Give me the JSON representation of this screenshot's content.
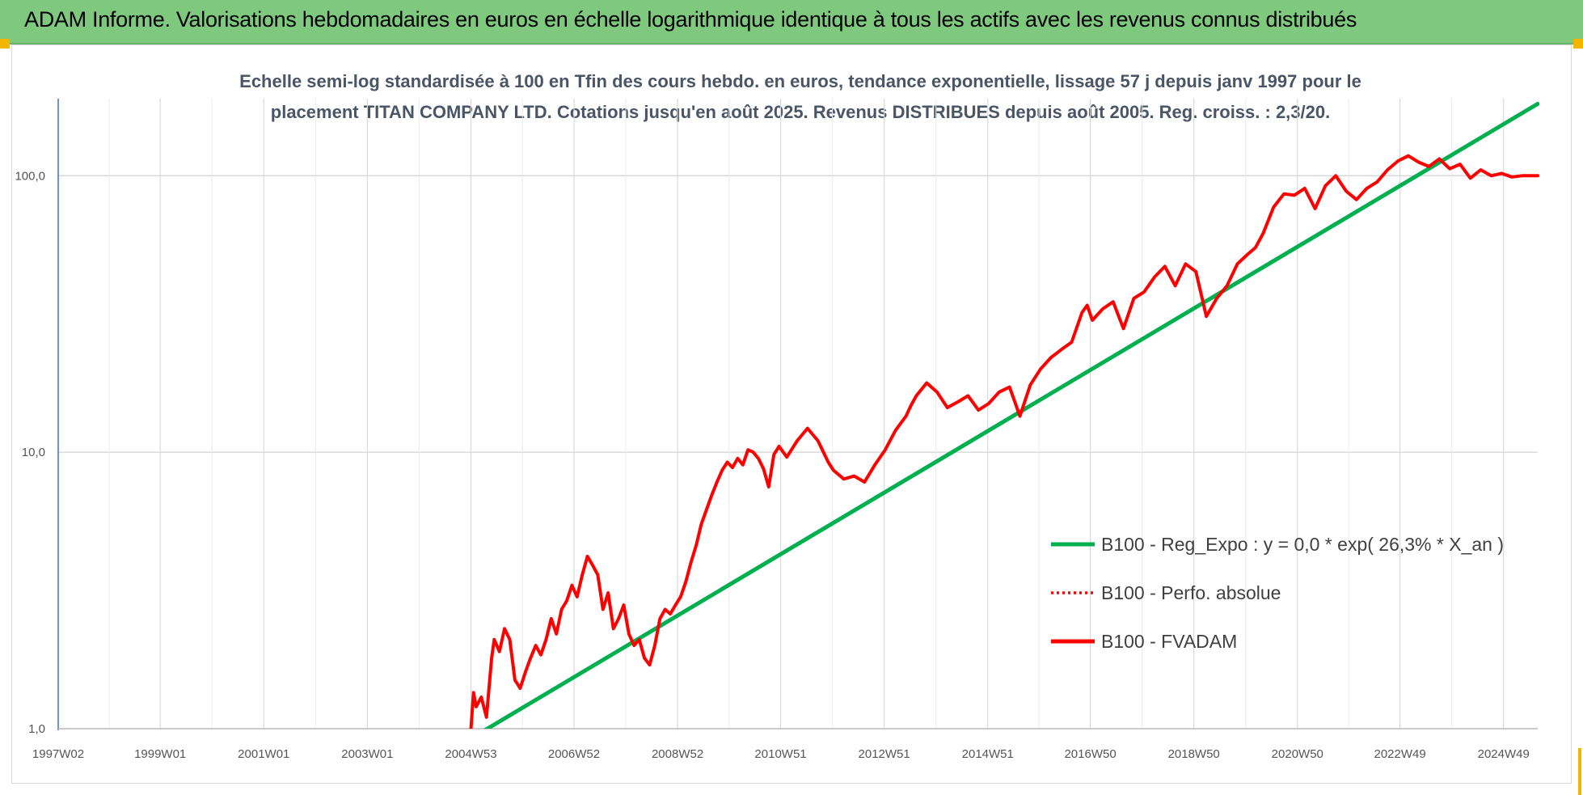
{
  "banner": {
    "title": "ADAM Informe. Valorisations hebdomadaires en euros en échelle logarithmique identique à tous les actifs avec les revenus connus distribués"
  },
  "colors": {
    "banner_bg": "#7fc97f",
    "accent": "#f2b600",
    "trend": "#00b050",
    "fvadam": "#ff0000",
    "grid": "#d9d9d9",
    "y_axis": "#4472c4"
  },
  "chart_data": {
    "type": "line",
    "title_lines": [
      "Echelle semi-log standardisée à 100 en Tfin des cours hebdo. en euros, tendance exponentielle, lissage 57 j depuis janv 1997 pour le",
      "placement TITAN COMPANY LTD. Cotations jusqu'en août 2025.  Revenus DISTRIBUES depuis août 2005. Reg. croiss. : 2,3/20."
    ],
    "y_scale": "log",
    "ylim": [
      1,
      190
    ],
    "xlim": [
      1997.03,
      2025.6
    ],
    "y_ticks": [
      {
        "value": 1,
        "label": "1,0"
      },
      {
        "value": 10,
        "label": "10,0"
      },
      {
        "value": 100,
        "label": "100,0"
      }
    ],
    "x_ticks": [
      {
        "value": 1997.03,
        "label": "1997W02"
      },
      {
        "value": 1999.0,
        "label": "1999W01"
      },
      {
        "value": 2001.0,
        "label": "2001W01"
      },
      {
        "value": 2003.0,
        "label": "2003W01"
      },
      {
        "value": 2005.0,
        "label": "2004W53"
      },
      {
        "value": 2006.99,
        "label": "2006W52"
      },
      {
        "value": 2008.99,
        "label": "2008W52"
      },
      {
        "value": 2010.98,
        "label": "2010W51"
      },
      {
        "value": 2012.98,
        "label": "2012W51"
      },
      {
        "value": 2014.98,
        "label": "2014W51"
      },
      {
        "value": 2016.96,
        "label": "2016W50"
      },
      {
        "value": 2018.96,
        "label": "2018W50"
      },
      {
        "value": 2020.96,
        "label": "2020W50"
      },
      {
        "value": 2022.94,
        "label": "2022W49"
      },
      {
        "value": 2024.94,
        "label": "2024W49"
      }
    ],
    "grid": true,
    "legend_position": "right",
    "series": [
      {
        "name": "B100 - Reg_Expo : y = 0,0 * exp( 26,3% *  X_an )",
        "style": "solid",
        "color": "#00b050",
        "x": [
          2005.2,
          2025.6
        ],
        "y": [
          0.97,
          182
        ]
      },
      {
        "name": "B100 - Perfo. absolue",
        "style": "dotted",
        "color": "#ff0000",
        "x": [],
        "y": []
      },
      {
        "name": "B100 - FVADAM",
        "style": "solid",
        "color": "#ff0000",
        "x": [
          2005.0,
          2005.05,
          2005.1,
          2005.2,
          2005.3,
          2005.4,
          2005.45,
          2005.55,
          2005.65,
          2005.75,
          2005.85,
          2005.95,
          2006.05,
          2006.15,
          2006.25,
          2006.35,
          2006.45,
          2006.55,
          2006.65,
          2006.75,
          2006.85,
          2006.95,
          2007.05,
          2007.15,
          2007.25,
          2007.35,
          2007.45,
          2007.55,
          2007.65,
          2007.75,
          2007.85,
          2007.95,
          2008.05,
          2008.15,
          2008.25,
          2008.35,
          2008.45,
          2008.55,
          2008.65,
          2008.75,
          2008.85,
          2008.95,
          2009.05,
          2009.15,
          2009.25,
          2009.35,
          2009.45,
          2009.55,
          2009.65,
          2009.75,
          2009.85,
          2009.95,
          2010.05,
          2010.15,
          2010.25,
          2010.35,
          2010.45,
          2010.55,
          2010.65,
          2010.75,
          2010.85,
          2010.95,
          2011.1,
          2011.3,
          2011.5,
          2011.7,
          2011.9,
          2012.0,
          2012.2,
          2012.4,
          2012.6,
          2012.8,
          2013.0,
          2013.2,
          2013.4,
          2013.5,
          2013.6,
          2013.8,
          2014.0,
          2014.2,
          2014.4,
          2014.6,
          2014.8,
          2015.0,
          2015.2,
          2015.4,
          2015.6,
          2015.8,
          2016.0,
          2016.2,
          2016.4,
          2016.6,
          2016.8,
          2016.9,
          2017.0,
          2017.2,
          2017.4,
          2017.6,
          2017.8,
          2018.0,
          2018.2,
          2018.4,
          2018.6,
          2018.8,
          2019.0,
          2019.2,
          2019.4,
          2019.6,
          2019.8,
          2020.0,
          2020.15,
          2020.3,
          2020.5,
          2020.7,
          2020.9,
          2021.1,
          2021.3,
          2021.5,
          2021.7,
          2021.9,
          2022.1,
          2022.3,
          2022.5,
          2022.7,
          2022.9,
          2023.1,
          2023.3,
          2023.5,
          2023.7,
          2023.9,
          2024.1,
          2024.3,
          2024.5,
          2024.7,
          2024.9,
          2025.1,
          2025.3,
          2025.5,
          2025.6
        ],
        "y": [
          1.0,
          1.35,
          1.2,
          1.3,
          1.1,
          1.8,
          2.1,
          1.9,
          2.3,
          2.1,
          1.5,
          1.4,
          1.6,
          1.8,
          2.0,
          1.85,
          2.1,
          2.5,
          2.2,
          2.7,
          2.9,
          3.3,
          3.0,
          3.6,
          4.2,
          3.9,
          3.6,
          2.7,
          3.1,
          2.3,
          2.5,
          2.8,
          2.2,
          2.0,
          2.1,
          1.8,
          1.7,
          2.0,
          2.5,
          2.7,
          2.6,
          2.8,
          3.0,
          3.4,
          4.0,
          4.6,
          5.5,
          6.2,
          7.0,
          7.8,
          8.6,
          9.2,
          8.8,
          9.5,
          9.0,
          10.2,
          10.0,
          9.5,
          8.7,
          7.5,
          9.8,
          10.5,
          9.6,
          11.0,
          12.2,
          11.0,
          9.2,
          8.6,
          8.0,
          8.2,
          7.8,
          9.0,
          10.2,
          12.0,
          13.5,
          14.8,
          16.0,
          17.8,
          16.5,
          14.5,
          15.2,
          16.0,
          14.2,
          15.0,
          16.5,
          17.2,
          13.5,
          17.5,
          20.0,
          22.0,
          23.5,
          25.0,
          32.0,
          34.0,
          30.0,
          33.0,
          35.0,
          28.0,
          36.0,
          38.0,
          43.0,
          47.0,
          40.0,
          48.0,
          45.0,
          31.0,
          36.0,
          40.0,
          48.0,
          52.0,
          55.0,
          62.0,
          77.0,
          86.0,
          85.0,
          90.0,
          76.0,
          92.0,
          100.0,
          88.0,
          82.0,
          90.0,
          95.0,
          105.0,
          113.0,
          118.0,
          112.0,
          108.0,
          115.0,
          106.0,
          110.0,
          98.0,
          105.0,
          100.0,
          102.0,
          99.0,
          100.0,
          100.0,
          100.0
        ]
      }
    ]
  }
}
